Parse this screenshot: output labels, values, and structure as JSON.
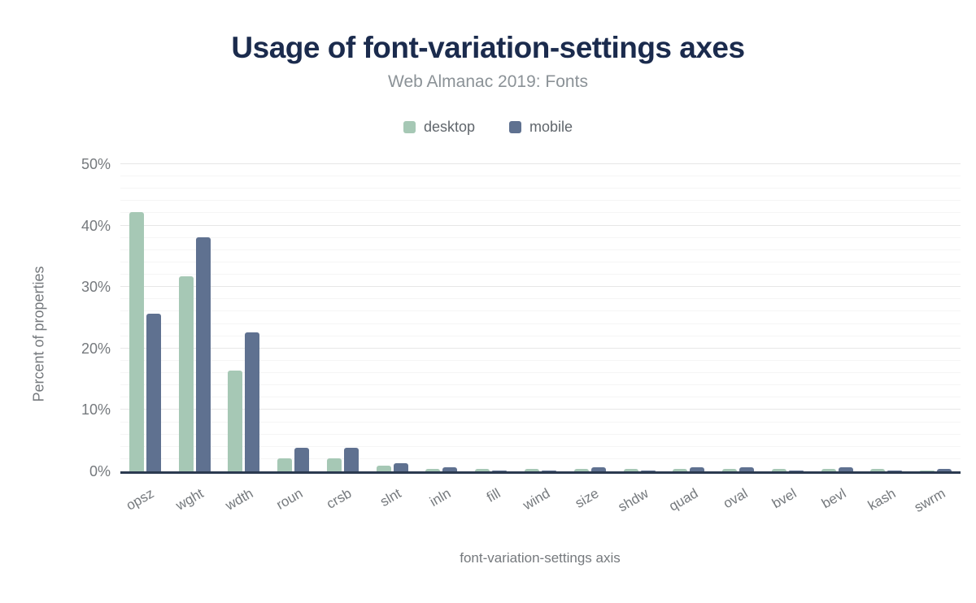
{
  "chart_data": {
    "type": "bar",
    "title": "Usage of font-variation-settings axes",
    "subtitle": "Web Almanac 2019: Fonts",
    "xlabel": "font-variation-settings axis",
    "ylabel": "Percent of properties",
    "ylim": [
      0,
      50
    ],
    "y_tick_step_major": 10,
    "y_tick_step_minor": 2,
    "y_tick_labels": [
      "0%",
      "10%",
      "20%",
      "30%",
      "40%",
      "50%"
    ],
    "grid": "horizontal; faint minor lines every 2%, light major lines every 10%",
    "legend_position": "top-center",
    "categories": [
      "opsz",
      "wght",
      "wdth",
      "roun",
      "crsb",
      "slnt",
      "inln",
      "fill",
      "wind",
      "size",
      "shdw",
      "quad",
      "oval",
      "bvel",
      "bevl",
      "kash",
      "swrm"
    ],
    "series": [
      {
        "name": "desktop",
        "color": "#a6c8b5",
        "values": [
          42.2,
          31.8,
          16.4,
          2.1,
          2.1,
          0.9,
          0.35,
          0.35,
          0.35,
          0.35,
          0.35,
          0.35,
          0.35,
          0.35,
          0.35,
          0.35,
          0.1
        ]
      },
      {
        "name": "mobile",
        "color": "#5f7190",
        "values": [
          25.6,
          38.1,
          22.6,
          3.9,
          3.9,
          1.3,
          0.6,
          0.1,
          0.1,
          0.6,
          0.1,
          0.6,
          0.6,
          0.1,
          0.6,
          0.1,
          0.35
        ]
      }
    ]
  },
  "colors": {
    "title_text": "#1b2b4d",
    "subtitle_text": "#8b9297",
    "axis_text": "#75797d",
    "legend_text": "#60666c",
    "axis_line": "#2b3a50",
    "grid_major": "#e7e7e7",
    "grid_minor": "#f5f5f5",
    "background": "#ffffff"
  }
}
